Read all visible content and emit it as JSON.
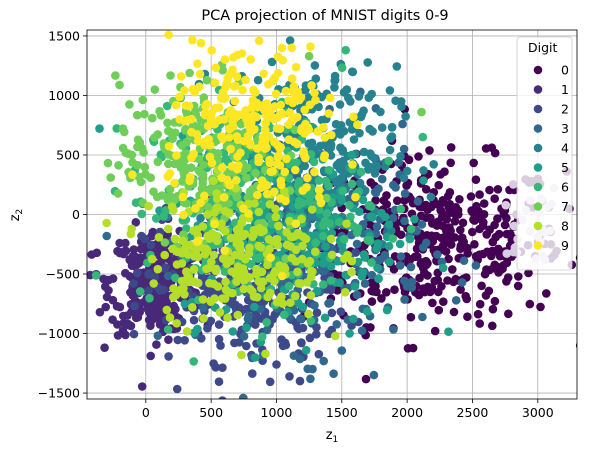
{
  "chart_data": {
    "type": "scatter",
    "title": "PCA projection of MNIST digits 0-9",
    "xlabel_base": "z",
    "xlabel_sub": "1",
    "ylabel_base": "z",
    "ylabel_sub": "2",
    "xlim": [
      -450,
      3300
    ],
    "ylim": [
      -1550,
      1550
    ],
    "xticks": [
      0,
      500,
      1000,
      1500,
      2000,
      2500,
      3000
    ],
    "xtick_labels": [
      "0",
      "500",
      "1000",
      "1500",
      "2000",
      "2500",
      "3000"
    ],
    "yticks": [
      -1500,
      -1000,
      -500,
      0,
      500,
      1000,
      1500
    ],
    "ytick_labels": [
      "−1500",
      "−1000",
      "−500",
      "0",
      "500",
      "1000",
      "1500"
    ],
    "grid": true,
    "legend": {
      "title": "Digit",
      "placement": "top-right"
    },
    "series": [
      {
        "name": "0",
        "color": "#440154",
        "center": [
          2200,
          -230
        ],
        "spread": [
          500,
          340
        ],
        "count": 420,
        "outliers": [
          [
            2980,
            -350
          ],
          [
            2850,
            -600
          ],
          [
            3100,
            -250
          ],
          [
            2760,
            100
          ]
        ]
      },
      {
        "name": "1",
        "color": "#482878",
        "center": [
          70,
          -560
        ],
        "spread": [
          170,
          220
        ],
        "count": 320,
        "outliers": [
          [
            -300,
            -550
          ],
          [
            400,
            -1000
          ],
          [
            250,
            -350
          ]
        ]
      },
      {
        "name": "2",
        "color": "#3e4989",
        "center": [
          760,
          -620
        ],
        "spread": [
          380,
          300
        ],
        "count": 320,
        "outliers": [
          [
            1000,
            -1260
          ],
          [
            1100,
            -1360
          ],
          [
            1180,
            -1400
          ]
        ]
      },
      {
        "name": "3",
        "color": "#31688e",
        "center": [
          1280,
          -250
        ],
        "spread": [
          420,
          440
        ],
        "count": 320,
        "outliers": [
          [
            1260,
            -1380
          ],
          [
            1780,
            -540
          ]
        ]
      },
      {
        "name": "4",
        "color": "#26828e",
        "center": [
          1260,
          520
        ],
        "spread": [
          330,
          360
        ],
        "count": 280,
        "outliers": [
          [
            1580,
            1200
          ]
        ]
      },
      {
        "name": "5",
        "color": "#1f9e89",
        "center": [
          1100,
          -120
        ],
        "spread": [
          430,
          400
        ],
        "count": 260,
        "outliers": [
          [
            1560,
            -1000
          ]
        ]
      },
      {
        "name": "6",
        "color": "#35b779",
        "center": [
          820,
          60
        ],
        "spread": [
          430,
          430
        ],
        "count": 260,
        "outliers": [
          [
            1530,
            1380
          ],
          [
            1860,
            450
          ],
          [
            2120,
            650
          ]
        ]
      },
      {
        "name": "7",
        "color": "#6ece58",
        "center": [
          390,
          470
        ],
        "spread": [
          300,
          330
        ],
        "count": 260,
        "outliers": [
          [
            1250,
            1330
          ],
          [
            2110,
            860
          ]
        ]
      },
      {
        "name": "8",
        "color": "#b5de2b",
        "center": [
          700,
          -320
        ],
        "spread": [
          340,
          280
        ],
        "count": 240,
        "outliers": [
          [
            1450,
            -1020
          ]
        ]
      },
      {
        "name": "9",
        "color": "#fde725",
        "center": [
          840,
          670
        ],
        "spread": [
          330,
          380
        ],
        "count": 260,
        "outliers": [
          [
            700,
            1340
          ],
          [
            1260,
            1410
          ]
        ]
      }
    ],
    "overlay_halo": {
      "color": "#d8cde0",
      "center": [
        2950,
        -90
      ],
      "spread": [
        130,
        160
      ],
      "count": 28
    }
  }
}
